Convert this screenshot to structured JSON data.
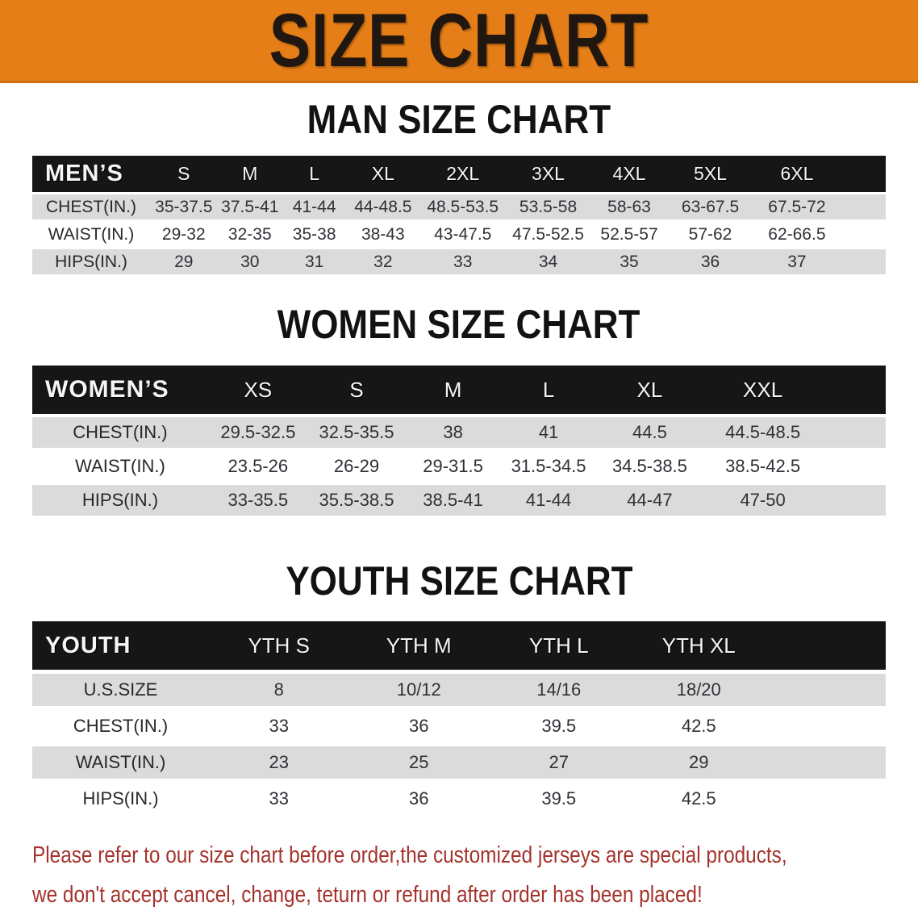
{
  "banner": {
    "title": "SIZE CHART"
  },
  "colors": {
    "banner_bg": "#e67e17",
    "header_bar_bg": "#161616",
    "row_stripe_gray": "#dbdbdb",
    "footer_text": "#a5322c"
  },
  "sections": {
    "men": {
      "title": "MAN SIZE CHART",
      "group_label": "MEN’S",
      "sizes": [
        "S",
        "M",
        "L",
        "XL",
        "2XL",
        "3XL",
        "4XL",
        "5XL",
        "6XL"
      ],
      "rows": [
        {
          "label": "CHEST(IN.)",
          "values": [
            "35-37.5",
            "37.5-41",
            "41-44",
            "44-48.5",
            "48.5-53.5",
            "53.5-58",
            "58-63",
            "63-67.5",
            "67.5-72"
          ]
        },
        {
          "label": "WAIST(IN.)",
          "values": [
            "29-32",
            "32-35",
            "35-38",
            "38-43",
            "43-47.5",
            "47.5-52.5",
            "52.5-57",
            "57-62",
            "62-66.5"
          ]
        },
        {
          "label": "HIPS(IN.)",
          "values": [
            "29",
            "30",
            "31",
            "32",
            "33",
            "34",
            "35",
            "36",
            "37"
          ]
        }
      ]
    },
    "women": {
      "title": "WOMEN SIZE CHART",
      "group_label": "WOMEN’S",
      "sizes": [
        "XS",
        "S",
        "M",
        "L",
        "XL",
        "XXL"
      ],
      "rows": [
        {
          "label": "CHEST(IN.)",
          "values": [
            "29.5-32.5",
            "32.5-35.5",
            "38",
            "41",
            "44.5",
            "44.5-48.5"
          ]
        },
        {
          "label": "WAIST(IN.)",
          "values": [
            "23.5-26",
            "26-29",
            "29-31.5",
            "31.5-34.5",
            "34.5-38.5",
            "38.5-42.5"
          ]
        },
        {
          "label": "HIPS(IN.)",
          "values": [
            "33-35.5",
            "35.5-38.5",
            "38.5-41",
            "41-44",
            "44-47",
            "47-50"
          ]
        }
      ]
    },
    "youth": {
      "title": "YOUTH SIZE CHART",
      "group_label": "YOUTH",
      "sizes": [
        "YTH S",
        "YTH M",
        "YTH L",
        "YTH XL"
      ],
      "rows": [
        {
          "label": "U.S.SIZE",
          "values": [
            "8",
            "10/12",
            "14/16",
            "18/20"
          ]
        },
        {
          "label": "CHEST(IN.)",
          "values": [
            "33",
            "36",
            "39.5",
            "42.5"
          ]
        },
        {
          "label": "WAIST(IN.)",
          "values": [
            "23",
            "25",
            "27",
            "29"
          ]
        },
        {
          "label": "HIPS(IN.)",
          "values": [
            "33",
            "36",
            "39.5",
            "42.5"
          ]
        }
      ]
    }
  },
  "footer": {
    "lines": [
      "Please refer to our size chart before order,the customized jerseys are special products,",
      "we don't accept cancel, change, teturn or refund after order has been placed!"
    ]
  }
}
